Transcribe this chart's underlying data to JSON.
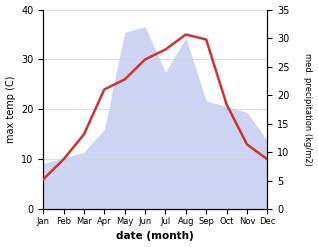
{
  "months": [
    "Jan",
    "Feb",
    "Mar",
    "Apr",
    "May",
    "Jun",
    "Jul",
    "Aug",
    "Sep",
    "Oct",
    "Nov",
    "Dec"
  ],
  "max_temp": [
    6,
    10,
    15,
    24,
    26,
    30,
    32,
    35,
    34,
    21,
    13,
    10
  ],
  "precipitation": [
    8,
    9,
    10,
    14,
    31,
    32,
    24,
    30,
    19,
    18,
    17,
    12
  ],
  "temp_color": "#cc3333",
  "precip_color_fill": "#c5cdf0",
  "precip_color_edge": "#c5cdf0",
  "temp_ylim": [
    0,
    40
  ],
  "precip_ylim": [
    0,
    35
  ],
  "temp_yticks": [
    0,
    10,
    20,
    30,
    40
  ],
  "precip_yticks": [
    0,
    5,
    10,
    15,
    20,
    25,
    30,
    35
  ],
  "xlabel": "date (month)",
  "ylabel_left": "max temp (C)",
  "ylabel_right": "med. precipitation (kg/m2)",
  "bg_color": "#ffffff",
  "grid_color": "#d0d0d0"
}
